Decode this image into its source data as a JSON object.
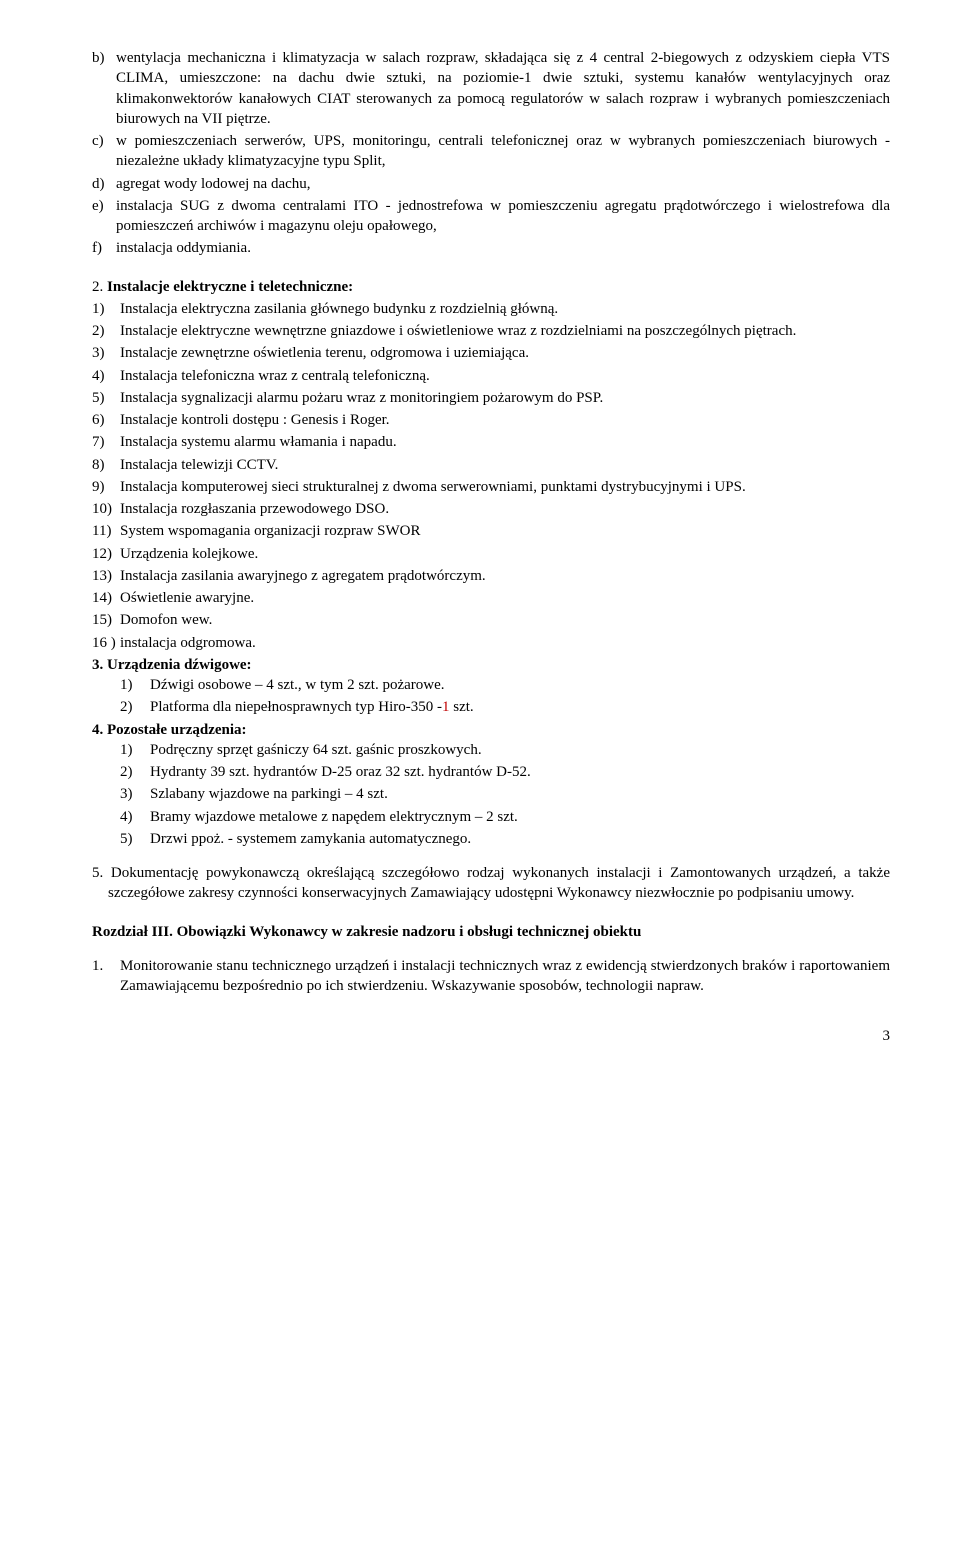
{
  "lettered": [
    {
      "marker": "b)",
      "text": "wentylacja mechaniczna i klimatyzacja w salach rozpraw, składająca się z 4 central 2-biegowych z odzyskiem ciepła VTS CLIMA, umieszczone: na dachu dwie sztuki, na poziomie-1 dwie sztuki, systemu kanałów wentylacyjnych oraz klimakonwektorów kanałowych CIAT sterowanych za pomocą regulatorów w salach rozpraw i wybranych pomieszczeniach biurowych na VII piętrze."
    },
    {
      "marker": "c)",
      "text": "w pomieszczeniach serwerów, UPS, monitoringu, centrali telefonicznej oraz w wybranych pomieszczeniach biurowych  -  niezależne układy klimatyzacyjne typu Split,"
    },
    {
      "marker": "d)",
      "text": "agregat wody lodowej na dachu,"
    },
    {
      "marker": "e)",
      "text": "instalacja SUG z dwoma centralami ITO - jednostrefowa w pomieszczeniu agregatu prądotwórczego i wielostrefowa dla pomieszczeń archiwów i magazynu oleju opałowego,"
    },
    {
      "marker": "f)",
      "text": "instalacja oddymiania."
    }
  ],
  "sec2": {
    "num": "2.",
    "title": "Instalacje elektryczne i teletechniczne:"
  },
  "sec2_items": [
    {
      "m": "1)",
      "c": "Instalacja elektryczna zasilania głównego budynku z rozdzielnią główną."
    },
    {
      "m": "2)",
      "c": "Instalacje elektryczne wewnętrzne gniazdowe i oświetleniowe wraz z rozdzielniami na poszczególnych piętrach."
    },
    {
      "m": "3)",
      "c": "Instalacje zewnętrzne oświetlenia terenu, odgromowa i uziemiająca."
    },
    {
      "m": "4)",
      "c": "Instalacja telefoniczna wraz z centralą telefoniczną."
    },
    {
      "m": "5)",
      "c": "Instalacja sygnalizacji alarmu pożaru wraz z monitoringiem pożarowym do PSP."
    },
    {
      "m": "6)",
      "c": "Instalacje kontroli dostępu : Genesis i Roger."
    },
    {
      "m": "7)",
      "c": "Instalacja systemu alarmu włamania i napadu."
    },
    {
      "m": "8)",
      "c": "Instalacja telewizji CCTV."
    },
    {
      "m": "9)",
      "c": "Instalacja komputerowej sieci strukturalnej z dwoma serwerowniami, punktami dystrybucyjnymi i UPS."
    },
    {
      "m": "10)",
      "c": "Instalacja rozgłaszania przewodowego DSO."
    },
    {
      "m": "11)",
      "c": "System wspomagania organizacji rozpraw SWOR"
    },
    {
      "m": "12)",
      "c": "Urządzenia kolejkowe."
    },
    {
      "m": "13)",
      "c": "Instalacja zasilania awaryjnego z agregatem prądotwórczym."
    },
    {
      "m": "14)",
      "c": "Oświetlenie awaryjne."
    },
    {
      "m": "15)",
      "c": "Domofon wew."
    },
    {
      "m": "16 )",
      "c": "instalacja odgromowa."
    }
  ],
  "sec3": {
    "line": "3. Urządzenia dźwigowe:"
  },
  "sec3_items": [
    {
      "m": "1)",
      "c_pre": "Dźwigi osobowe – 4 szt., w tym 2 szt. pożarowe."
    },
    {
      "m": "2)",
      "c_pre": "Platforma dla niepełnosprawnych typ Hiro-350 -",
      "red": "1",
      "c_post": " szt."
    }
  ],
  "sec4": {
    "line": "4. Pozostałe urządzenia:"
  },
  "sec4_items": [
    {
      "m": "1)",
      "c": "Podręczny sprzęt gaśniczy 64 szt. gaśnic proszkowych."
    },
    {
      "m": "2)",
      "c": "Hydranty  39 szt. hydrantów D-25 oraz 32 szt.  hydrantów D-52."
    },
    {
      "m": "3)",
      "c": "Szlabany wjazdowe na parkingi – 4 szt."
    },
    {
      "m": "4)",
      "c": "Bramy wjazdowe metalowe z napędem elektrycznym – 2 szt."
    },
    {
      "m": "5)",
      "c": "Drzwi ppoż. - systemem zamykania automatycznego."
    }
  ],
  "sec5": "5. Dokumentację powykonawczą określającą szczegółowo rodzaj wykonanych  instalacji i Zamontowanych urządzeń, a także  szczegółowe  zakresy  czynności konserwacyjnych Zamawiający udostępni Wykonawcy niezwłocznie po podpisaniu umowy.",
  "rozdzial": "Rozdział III.  Obowiązki Wykonawcy w zakresie nadzoru i obsługi technicznej obiektu",
  "r3_items": [
    {
      "m": "1.",
      "c": "Monitorowanie stanu technicznego urządzeń i instalacji technicznych wraz z ewidencją stwierdzonych braków i raportowaniem Zamawiającemu bezpośrednio po ich stwierdzeniu. Wskazywanie sposobów, technologii napraw."
    }
  ],
  "page": "3"
}
